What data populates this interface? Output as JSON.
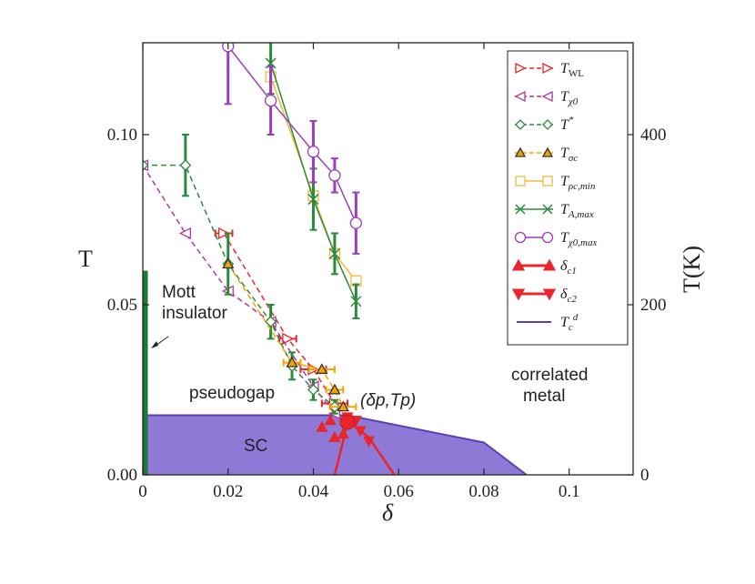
{
  "chart_data": {
    "type": "scatter",
    "xlabel": "δ",
    "ylabel": "T",
    "y2label": "T(K)",
    "xlim": [
      0,
      0.115
    ],
    "ylim": [
      0,
      0.127
    ],
    "y2lim": [
      0,
      508
    ],
    "xticks": [
      "0",
      "0.02",
      "0.04",
      "0.06",
      "0.08",
      "0.1"
    ],
    "xtick_values": [
      0,
      0.02,
      0.04,
      0.06,
      0.08,
      0.1
    ],
    "yticks": [
      "0.00",
      "0.05",
      "0.10"
    ],
    "ytick_values": [
      0,
      0.05,
      0.1
    ],
    "y2ticks": [
      "0",
      "200",
      "400"
    ],
    "y2tick_values": [
      0,
      200,
      400
    ],
    "colors": {
      "red": "#e8262b",
      "magenta": "#b4389a",
      "green": "#2b8a3e",
      "orange": "#f2a500",
      "yellow": "#f5b93a",
      "purple": "#9a3ec0",
      "sc_fill": "#8e7ad6",
      "sc_line": "#5a3fb0",
      "mott": "#1f7a3a"
    },
    "legend": [
      {
        "key": "TWL",
        "base": "T",
        "sub": "WL",
        "sup": "",
        "color": "#e8262b",
        "marker": "tri-right",
        "style": "dashed"
      },
      {
        "key": "Tchi0",
        "base": "T",
        "sub": "χ0",
        "sup": "",
        "color": "#b4389a",
        "marker": "tri-left",
        "style": "dashed"
      },
      {
        "key": "Tstar",
        "base": "T",
        "sub": "",
        "sup": "*",
        "color": "#2b8a3e",
        "marker": "diamond",
        "style": "dashed"
      },
      {
        "key": "Tsigma",
        "base": "T",
        "sub": "σc",
        "sup": "",
        "color": "#333333",
        "fill": "#f2a500",
        "marker": "tri-up-filled",
        "style": "dashed"
      },
      {
        "key": "Trho",
        "base": "T",
        "sub": "ρc,min",
        "sup": "",
        "color": "#f5b93a",
        "marker": "square",
        "style": "solid"
      },
      {
        "key": "TA",
        "base": "T",
        "sub": "A,max",
        "sup": "",
        "color": "#2b8a3e",
        "marker": "x",
        "style": "solid"
      },
      {
        "key": "Tchimax",
        "base": "T",
        "sub": "χ0,max",
        "sup": "",
        "color": "#9a3ec0",
        "marker": "circle",
        "style": "solid"
      },
      {
        "key": "dc1",
        "base": "δ",
        "sub": "c1",
        "sup": "",
        "color": "#e8262b",
        "marker": "tri-up-filled",
        "style": "solid"
      },
      {
        "key": "dc2",
        "base": "δ",
        "sub": "c2",
        "sup": "",
        "color": "#e8262b",
        "marker": "tri-down-filled",
        "style": "solid"
      },
      {
        "key": "Tcd",
        "base": "T",
        "sub": "c",
        "sup": "d",
        "color": "#5a3fb0",
        "marker": "none",
        "style": "solid"
      }
    ],
    "annotations": {
      "mott": "Mott",
      "mott2": "insulator",
      "pseudogap": "pseudogap",
      "sc": "SC",
      "metal": "correlated",
      "metal2": "metal",
      "point": "(δp,Tp)"
    },
    "series": [
      {
        "name": "T_WL",
        "color": "#e8262b",
        "marker": "tri-right",
        "style": "dashed",
        "x": [
          0.019,
          0.034,
          0.04,
          0.045
        ],
        "y": [
          0.071,
          0.04,
          0.031,
          0.021
        ],
        "xerr": [
          0.002,
          0.002,
          0.003,
          0.003
        ]
      },
      {
        "name": "T_chi0",
        "color": "#b4389a",
        "marker": "tri-left",
        "style": "dashed",
        "x": [
          0.0,
          0.01,
          0.02,
          0.03,
          0.04,
          0.045
        ],
        "y": [
          0.091,
          0.071,
          0.054,
          0.045,
          0.026,
          0.018
        ]
      },
      {
        "name": "T_star",
        "color": "#2b8a3e",
        "marker": "diamond",
        "style": "dashed",
        "x": [
          0.0,
          0.01,
          0.02,
          0.03,
          0.035,
          0.04,
          0.045
        ],
        "y": [
          0.091,
          0.091,
          0.062,
          0.045,
          0.032,
          0.025,
          0.02
        ],
        "yerr": [
          0,
          0.009,
          0.009,
          0.005,
          0.004,
          0.003,
          0.002
        ]
      },
      {
        "name": "T_sigma",
        "color": "#333333",
        "fill": "#f2a500",
        "marker": "tri-up-filled",
        "style": "dashed",
        "x": [
          0.02,
          0.035,
          0.042,
          0.045,
          0.047
        ],
        "y": [
          0.062,
          0.033,
          0.031,
          0.025,
          0.02
        ],
        "xerr": [
          0,
          0.002,
          0.003,
          0.002,
          0.003
        ]
      },
      {
        "name": "T_rho_min",
        "color": "#f5b93a",
        "marker": "square",
        "style": "solid",
        "x": [
          0.03,
          0.04,
          0.045,
          0.05
        ],
        "y": [
          0.117,
          0.082,
          0.065,
          0.057
        ]
      },
      {
        "name": "T_A_max",
        "color": "#2b8a3e",
        "marker": "x",
        "style": "solid",
        "x": [
          0.03,
          0.04,
          0.045,
          0.05
        ],
        "y": [
          0.121,
          0.081,
          0.065,
          0.051
        ],
        "yerr": [
          0.009,
          0.009,
          0.006,
          0.005
        ]
      },
      {
        "name": "T_chi0_max",
        "color": "#9a3ec0",
        "marker": "circle",
        "style": "solid",
        "x": [
          0.02,
          0.03,
          0.04,
          0.045,
          0.05
        ],
        "y": [
          0.126,
          0.11,
          0.095,
          0.088,
          0.074
        ],
        "yerr": [
          0.017,
          0.01,
          0.009,
          0.005,
          0.009
        ]
      }
    ],
    "delta_c1": {
      "x": [
        0.042,
        0.044,
        0.045,
        0.047
      ],
      "y": [
        0.014,
        0.016,
        0.011,
        0.012
      ]
    },
    "delta_c2": {
      "x": [
        0.048,
        0.05,
        0.051,
        0.053
      ],
      "y": [
        0.017,
        0.016,
        0.013,
        0.01
      ]
    },
    "red_curves": {
      "c1": {
        "x": [
          0.045,
          0.047,
          0.048
        ],
        "y": [
          0.0,
          0.01,
          0.016
        ]
      },
      "c2": {
        "x": [
          0.048,
          0.053,
          0.059
        ],
        "y": [
          0.016,
          0.011,
          0.0
        ]
      }
    },
    "tcd_boundary": {
      "x": [
        0.0,
        0.048,
        0.08,
        0.09
      ],
      "y": [
        0.0175,
        0.0175,
        0.0095,
        0.0
      ]
    },
    "mott_line": {
      "x": 0.0,
      "y": [
        0.0,
        0.06
      ]
    },
    "critical_point": {
      "x": 0.048,
      "y": 0.0155
    }
  }
}
